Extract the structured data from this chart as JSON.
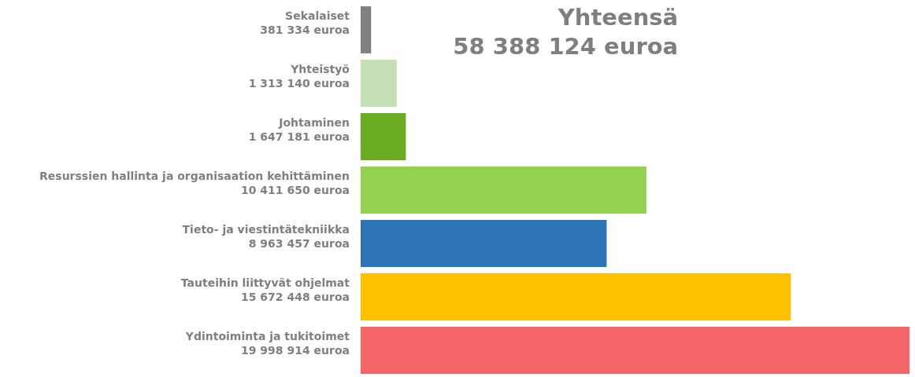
{
  "chart_data": {
    "type": "bar",
    "orientation": "horizontal",
    "title": "Yhteensä",
    "subtitle": "58 388 124 euroa",
    "categories": [
      "Sekalaiset",
      "Yhteistyö",
      "Johtaminen",
      "Resurssien hallinta ja organisaation kehittäminen",
      "Tieto- ja viestintätekniikka",
      "Tauteihin liittyvät ohjelmat",
      "Ydintoiminta ja tukitoimet"
    ],
    "values": [
      381334,
      1313140,
      1647181,
      10411650,
      8963457,
      15672448,
      19998914
    ],
    "value_labels": [
      "381 334 euroa",
      "1 313 140 euroa",
      "1 647 181 euroa",
      "10 411 650 euroa",
      "8 963 457 euroa",
      "15 672 448 euroa",
      "19 998 914 euroa"
    ],
    "colors": [
      "#808080",
      "#c5e0b4",
      "#6aad23",
      "#92d050",
      "#2e75b6",
      "#ffc000",
      "#f46666"
    ]
  }
}
